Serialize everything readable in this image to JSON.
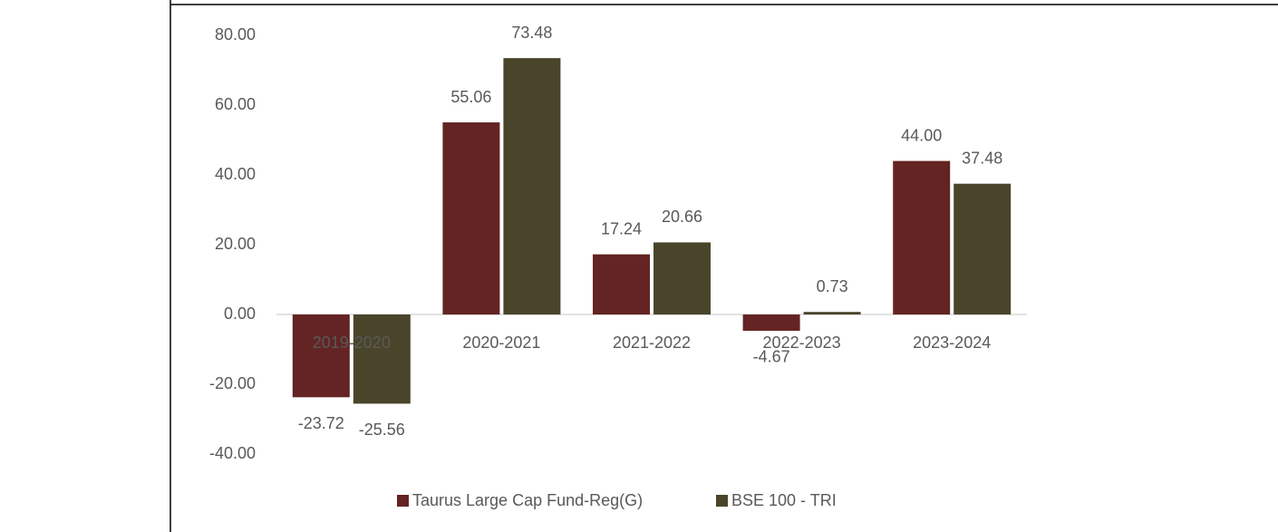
{
  "chart_data": {
    "type": "bar",
    "categories": [
      "2019-2020",
      "2020-2021",
      "2021-2022",
      "2022-2023",
      "2023-2024"
    ],
    "series": [
      {
        "name": "Taurus Large Cap Fund-Reg(G)",
        "color": "#632423",
        "values": [
          -23.72,
          55.06,
          17.24,
          -4.67,
          44.0
        ],
        "value_labels": [
          "-23.72",
          "55.06",
          "17.24",
          "-4.67",
          "44.00"
        ]
      },
      {
        "name": "BSE 100 - TRI",
        "color": "#4a452a",
        "values": [
          -25.56,
          73.48,
          20.66,
          0.73,
          37.48
        ],
        "value_labels": [
          "-25.56",
          "73.48",
          "20.66",
          "0.73",
          "37.48"
        ]
      }
    ],
    "ylim": [
      -40,
      80
    ],
    "yticks": [
      {
        "value": -40,
        "label": "-40.00"
      },
      {
        "value": -20,
        "label": "-20.00"
      },
      {
        "value": 0,
        "label": "0.00"
      },
      {
        "value": 20,
        "label": "20.00"
      },
      {
        "value": 40,
        "label": "40.00"
      },
      {
        "value": 60,
        "label": "60.00"
      },
      {
        "value": 80,
        "label": "80.00"
      }
    ],
    "grid": false,
    "legend": "bottom"
  }
}
